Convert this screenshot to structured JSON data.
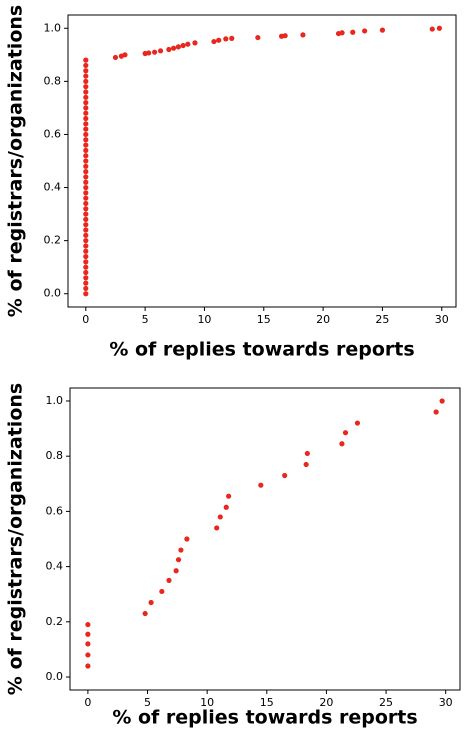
{
  "chart_data": [
    {
      "type": "scatter",
      "xlabel": "% of replies towards reports",
      "ylabel": "% of registrars/organizations",
      "color": "#e8271e",
      "xlim": [
        -1.5,
        31.2
      ],
      "ylim": [
        -0.05,
        1.05
      ],
      "xticks": [
        0,
        5,
        10,
        15,
        20,
        25,
        30
      ],
      "yticks": [
        {
          "value": 0,
          "label": "0.0"
        },
        {
          "value": 0.2,
          "label": "0.2"
        },
        {
          "value": 0.4,
          "label": "0.4"
        },
        {
          "value": 0.6,
          "label": "0.6"
        },
        {
          "value": 0.8,
          "label": "0.8"
        },
        {
          "value": 1,
          "label": "1.0"
        }
      ],
      "x": [
        0,
        0,
        0,
        0,
        0,
        0,
        0,
        0,
        0,
        0,
        0,
        0,
        0,
        0,
        0,
        0,
        0,
        0,
        0,
        0,
        0,
        0,
        0,
        0,
        0,
        0,
        0,
        0,
        0,
        0,
        0,
        0,
        0,
        0,
        0,
        0,
        0,
        0,
        0,
        0,
        0,
        0,
        0,
        0,
        0,
        2.5,
        3,
        3.3,
        5,
        5.3,
        5.8,
        6.3,
        7,
        7.4,
        7.8,
        8.2,
        8.6,
        9.2,
        10.8,
        11.2,
        11.8,
        12.3,
        14.5,
        16.5,
        16.8,
        18.3,
        21.3,
        21.6,
        22.5,
        23.5,
        25,
        29.2,
        29.8
      ],
      "values": [
        0,
        0.02,
        0.04,
        0.06,
        0.08,
        0.1,
        0.12,
        0.14,
        0.16,
        0.18,
        0.2,
        0.22,
        0.24,
        0.26,
        0.28,
        0.3,
        0.32,
        0.34,
        0.36,
        0.38,
        0.4,
        0.42,
        0.44,
        0.46,
        0.48,
        0.5,
        0.52,
        0.54,
        0.56,
        0.58,
        0.6,
        0.62,
        0.64,
        0.66,
        0.68,
        0.7,
        0.72,
        0.74,
        0.76,
        0.78,
        0.8,
        0.82,
        0.84,
        0.86,
        0.88,
        0.89,
        0.895,
        0.9,
        0.905,
        0.907,
        0.91,
        0.915,
        0.92,
        0.925,
        0.93,
        0.935,
        0.94,
        0.945,
        0.95,
        0.955,
        0.96,
        0.962,
        0.965,
        0.97,
        0.972,
        0.975,
        0.98,
        0.983,
        0.985,
        0.99,
        0.993,
        0.997,
        1.0
      ]
    },
    {
      "type": "scatter",
      "xlabel": "% of replies towards reports",
      "ylabel": "% of registrars/organizations",
      "color": "#e8271e",
      "xlim": [
        -1.5,
        31.2
      ],
      "ylim": [
        -0.047,
        1.047
      ],
      "xticks": [
        0,
        5,
        10,
        15,
        20,
        25,
        30
      ],
      "yticks": [
        {
          "value": 0,
          "label": "0.0"
        },
        {
          "value": 0.2,
          "label": "0.2"
        },
        {
          "value": 0.4,
          "label": "0.4"
        },
        {
          "value": 0.6,
          "label": "0.6"
        },
        {
          "value": 0.8,
          "label": "0.8"
        },
        {
          "value": 1,
          "label": "1.0"
        }
      ],
      "x": [
        0,
        0,
        0,
        0,
        0,
        4.8,
        5.3,
        6.2,
        6.8,
        7.4,
        7.6,
        7.8,
        8.3,
        10.8,
        11.1,
        11.6,
        11.8,
        14.5,
        16.5,
        18.3,
        18.4,
        21.3,
        21.6,
        22.6,
        29.2,
        29.7
      ],
      "values": [
        0.04,
        0.08,
        0.12,
        0.155,
        0.19,
        0.23,
        0.27,
        0.31,
        0.35,
        0.385,
        0.425,
        0.46,
        0.5,
        0.54,
        0.58,
        0.615,
        0.655,
        0.695,
        0.73,
        0.77,
        0.81,
        0.845,
        0.885,
        0.92,
        0.96,
        1.0
      ]
    }
  ]
}
